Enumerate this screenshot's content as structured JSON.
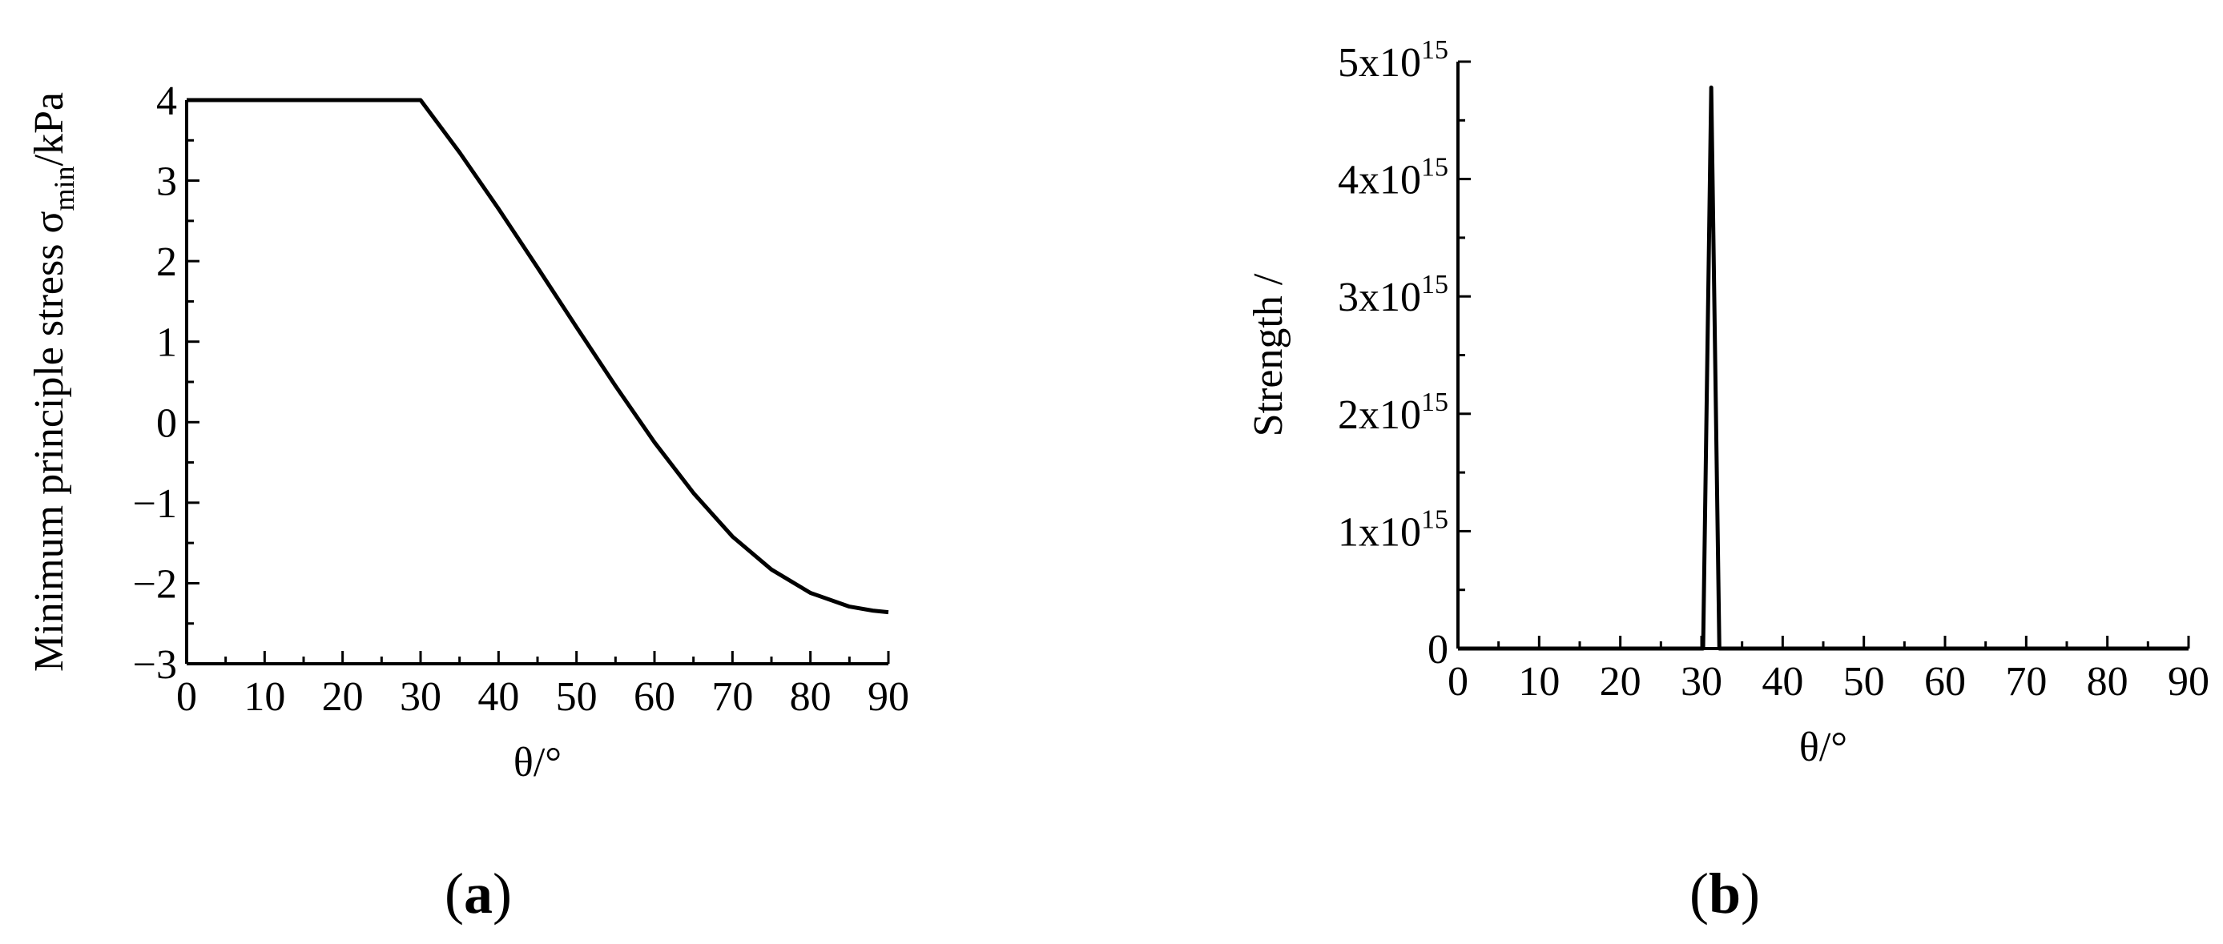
{
  "chart_data": [
    {
      "panel_label": "a",
      "type": "line",
      "xlabel": "θ/°",
      "ylabel": {
        "prefix": "Minimum principle stress σ",
        "subscript": "min",
        "suffix": "/kPa"
      },
      "xlim": [
        0,
        90
      ],
      "ylim": [
        -3,
        4
      ],
      "xticks": [
        0,
        10,
        20,
        30,
        40,
        50,
        60,
        70,
        80,
        90
      ],
      "xtick_labels": [
        "0",
        "10",
        "20",
        "30",
        "40",
        "50",
        "60",
        "70",
        "80",
        "90"
      ],
      "yticks": [
        -3,
        -2,
        -1,
        0,
        1,
        2,
        3,
        4
      ],
      "ytick_labels": [
        "−3",
        "−2",
        "−1",
        "0",
        "1",
        "2",
        "3",
        "4"
      ],
      "grid": false,
      "series": [
        {
          "color": "#000000",
          "x": [
            0,
            30,
            35,
            40,
            45,
            50,
            55,
            60,
            65,
            70,
            75,
            80,
            85,
            88,
            90
          ],
          "y": [
            4.0,
            4.0,
            3.35,
            2.65,
            1.92,
            1.18,
            0.45,
            -0.25,
            -0.88,
            -1.42,
            -1.83,
            -2.12,
            -2.29,
            -2.34,
            -2.36
          ]
        }
      ]
    },
    {
      "panel_label": "b",
      "type": "line",
      "xlabel": "θ/°",
      "ylabel": "Strength /",
      "xlim": [
        0,
        90
      ],
      "ylim": [
        0,
        5
      ],
      "xticks": [
        0,
        10,
        20,
        30,
        40,
        50,
        60,
        70,
        80,
        90
      ],
      "xtick_labels": [
        "0",
        "10",
        "20",
        "30",
        "40",
        "50",
        "60",
        "70",
        "80",
        "90"
      ],
      "yticks": [
        0,
        1,
        2,
        3,
        4,
        5
      ],
      "ytick_labels": [
        {
          "mantissa": "0",
          "exponent": ""
        },
        {
          "mantissa": "1x10",
          "exponent": "15"
        },
        {
          "mantissa": "2x10",
          "exponent": "15"
        },
        {
          "mantissa": "3x10",
          "exponent": "15"
        },
        {
          "mantissa": "4x10",
          "exponent": "15"
        },
        {
          "mantissa": "5x10",
          "exponent": "15"
        }
      ],
      "y_multiplier": "1e15",
      "grid": false,
      "series": [
        {
          "color": "#000000",
          "x": [
            0,
            30.2,
            31.2,
            32.2,
            90
          ],
          "y": [
            0,
            0,
            4.78,
            0,
            0
          ]
        }
      ]
    }
  ]
}
